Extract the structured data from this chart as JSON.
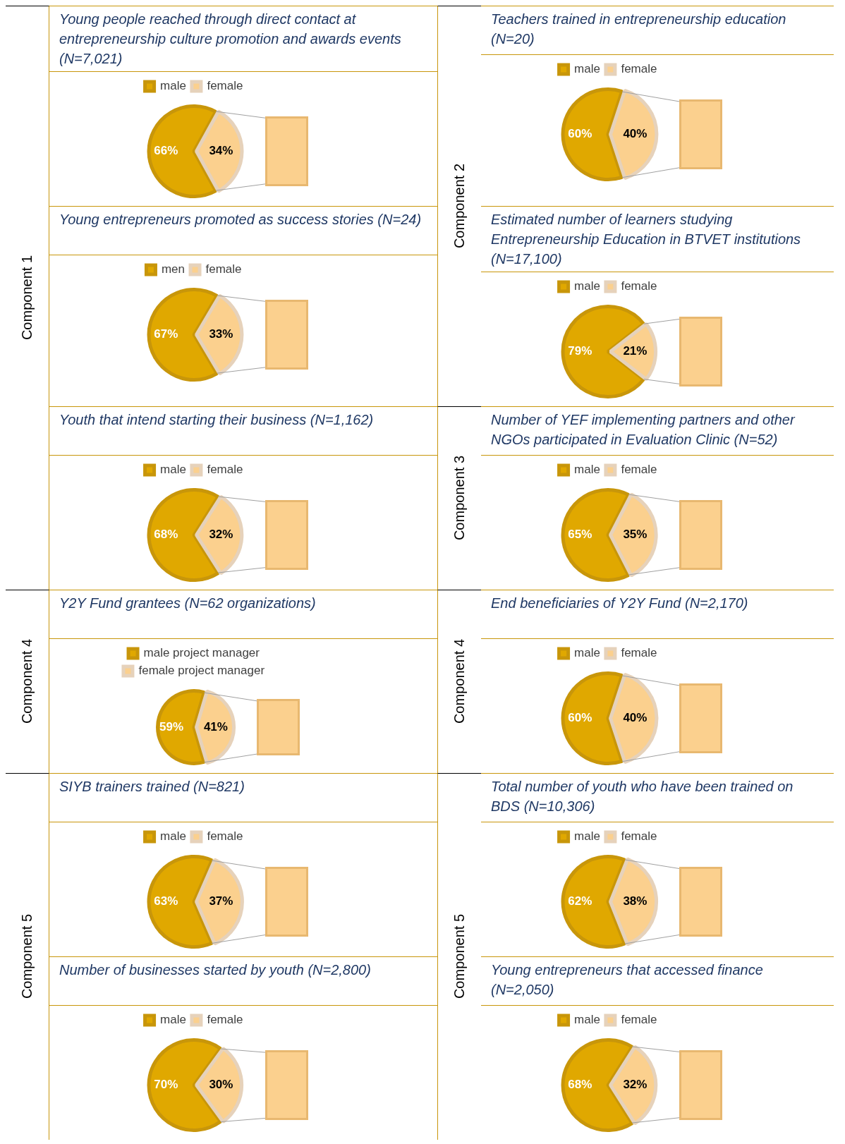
{
  "chart_data": [
    {
      "type": "pie",
      "title": "Young people reached through direct contact at entrepreneurship culture promotion and awards events (N=7,021)",
      "annotations": [
        "Component 1"
      ],
      "categories": [
        "male",
        "female"
      ],
      "values": [
        66,
        34
      ],
      "value_labels": [
        "66%",
        "34%"
      ],
      "colors": [
        "#e0a800",
        "#fbd08e"
      ],
      "legend": "top"
    },
    {
      "type": "pie",
      "title": "Teachers trained in entrepreneurship education (N=20)",
      "annotations": [
        "Component 2"
      ],
      "categories": [
        "male",
        "female"
      ],
      "values": [
        60,
        40
      ],
      "value_labels": [
        "60%",
        "40%"
      ],
      "colors": [
        "#e0a800",
        "#fbd08e"
      ],
      "legend": "top"
    },
    {
      "type": "pie",
      "title": "Young entrepreneurs promoted as success stories (N=24)",
      "categories": [
        "men",
        "female"
      ],
      "values": [
        67,
        33
      ],
      "value_labels": [
        "67%",
        "33%"
      ],
      "colors": [
        "#e0a800",
        "#fbd08e"
      ],
      "legend": "top"
    },
    {
      "type": "pie",
      "title": "Estimated number of learners studying Entrepreneurship Education in BTVET institutions (N=17,100)",
      "categories": [
        "male",
        "female"
      ],
      "values": [
        79,
        21
      ],
      "value_labels": [
        "79%",
        "21%"
      ],
      "colors": [
        "#e0a800",
        "#fbd08e"
      ],
      "legend": "top"
    },
    {
      "type": "pie",
      "title": "Youth that intend starting their business (N=1,162)",
      "categories": [
        "male",
        "female"
      ],
      "values": [
        68,
        32
      ],
      "value_labels": [
        "68%",
        "32%"
      ],
      "colors": [
        "#e0a800",
        "#fbd08e"
      ],
      "legend": "top"
    },
    {
      "type": "pie",
      "title": "Number of YEF implementing partners and other NGOs participated in Evaluation Clinic (N=52)",
      "annotations": [
        "Component 3"
      ],
      "categories": [
        "male",
        "female"
      ],
      "values": [
        65,
        35
      ],
      "value_labels": [
        "65%",
        "35%"
      ],
      "colors": [
        "#e0a800",
        "#fbd08e"
      ],
      "legend": "top"
    },
    {
      "type": "pie",
      "title": "Y2Y Fund grantees (N=62 organizations)",
      "annotations": [
        "Component 4"
      ],
      "categories": [
        "male project manager",
        "female project manager"
      ],
      "values": [
        59,
        41
      ],
      "value_labels": [
        "59%",
        "41%"
      ],
      "colors": [
        "#e0a800",
        "#fbd08e"
      ],
      "legend": "top"
    },
    {
      "type": "pie",
      "title": "End beneficiaries of Y2Y Fund (N=2,170)",
      "annotations": [
        "Component 4"
      ],
      "categories": [
        "male",
        "female"
      ],
      "values": [
        60,
        40
      ],
      "value_labels": [
        "60%",
        "40%"
      ],
      "colors": [
        "#e0a800",
        "#fbd08e"
      ],
      "legend": "top"
    },
    {
      "type": "pie",
      "title": "SIYB trainers trained (N=821)",
      "annotations": [
        "Component 5"
      ],
      "categories": [
        "male",
        "female"
      ],
      "values": [
        63,
        37
      ],
      "value_labels": [
        "63%",
        "37%"
      ],
      "colors": [
        "#e0a800",
        "#fbd08e"
      ],
      "legend": "top"
    },
    {
      "type": "pie",
      "title": "Total number of youth who have been trained on BDS (N=10,306)",
      "annotations": [
        "Component 5"
      ],
      "categories": [
        "male",
        "female"
      ],
      "values": [
        62,
        38
      ],
      "value_labels": [
        "62%",
        "38%"
      ],
      "colors": [
        "#e0a800",
        "#fbd08e"
      ],
      "legend": "top"
    },
    {
      "type": "pie",
      "title": "Number of businesses started by youth (N=2,800)",
      "categories": [
        "male",
        "female"
      ],
      "values": [
        70,
        30
      ],
      "value_labels": [
        "70%",
        "30%"
      ],
      "colors": [
        "#e0a800",
        "#fbd08e"
      ],
      "legend": "top"
    },
    {
      "type": "pie",
      "title": "Young entrepreneurs that accessed finance (N=2,050)",
      "categories": [
        "male",
        "female"
      ],
      "values": [
        68,
        32
      ],
      "value_labels": [
        "68%",
        "32%"
      ],
      "colors": [
        "#e0a800",
        "#fbd08e"
      ],
      "legend": "top"
    }
  ]
}
